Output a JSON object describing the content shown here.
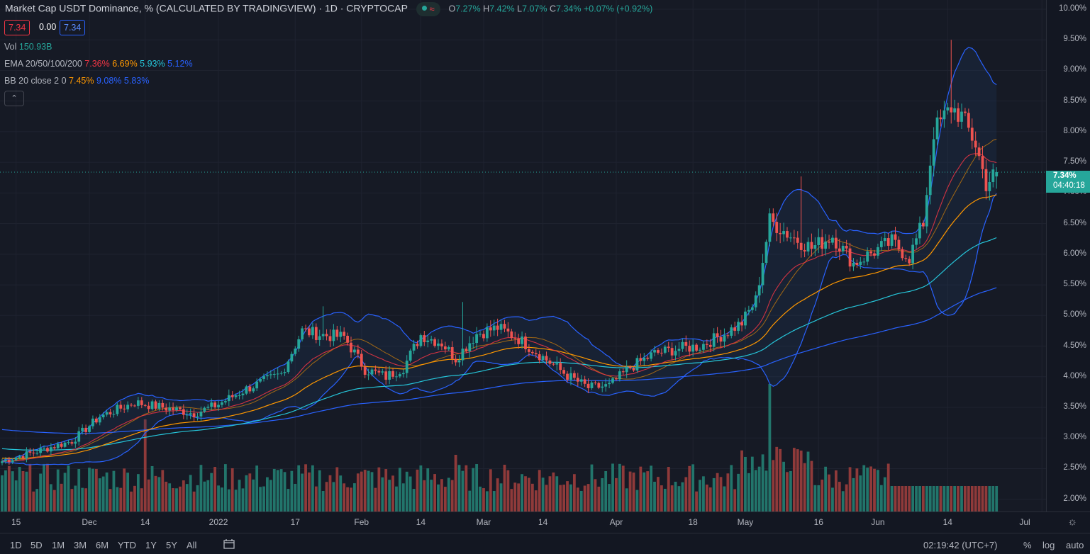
{
  "header": {
    "title": "Market Cap USDT Dominance, % (CALCULATED BY TRADINGVIEW) · 1D · CRYPTOCAP",
    "ohlc": {
      "o_label": "O",
      "o_value": "7.27%",
      "h_label": "H",
      "h_value": "7.42%",
      "l_label": "L",
      "l_value": "7.07%",
      "c_label": "C",
      "c_value": "7.34%",
      "change": "+0.07% (+0.92%)"
    },
    "status_icons": [
      "status-dot-icon",
      "wave-icon"
    ],
    "boxes": {
      "bid": "7.34",
      "spread": "0.00",
      "ask": "7.34"
    }
  },
  "indicators": {
    "vol": {
      "label": "Vol",
      "value": "150.93B"
    },
    "ema": {
      "label": "EMA 20/50/100/200",
      "v20": "7.36%",
      "v50": "6.69%",
      "v100": "5.93%",
      "v200": "5.12%"
    },
    "bb": {
      "label": "BB 20 close 2 0",
      "basis": "7.45%",
      "upper": "9.08%",
      "lower": "5.83%"
    },
    "collapse_icon": "chevron-up-icon"
  },
  "last_price": {
    "value": "7.34%",
    "countdown": "04:40:18"
  },
  "colors": {
    "up": "#26a69a",
    "down": "#ef5350",
    "ema20": "#f23645",
    "ema50": "#ff9800",
    "ema100": "#26c6da",
    "ema200": "#2962ff",
    "bb": "#2962ff",
    "bb_basis": "#ff9800",
    "bb_fill": "#1f3a5f",
    "vol_up": "#22756b",
    "vol_down": "#8f3a3a"
  },
  "bottom_bar": {
    "ranges": [
      "1D",
      "5D",
      "1M",
      "3M",
      "6M",
      "YTD",
      "1Y",
      "5Y",
      "All"
    ],
    "goto_icon": "calendar-goto-icon",
    "clock": "02:19:42 (UTC+7)",
    "percent": "%",
    "log": "log",
    "auto": "auto"
  },
  "settings_icon": "gear-icon",
  "chart_data": {
    "type": "candlestick",
    "title": "Market Cap USDT Dominance, %",
    "ylabel": "%",
    "y_ticks": [
      "2.00%",
      "2.50%",
      "3.00%",
      "3.50%",
      "4.00%",
      "4.50%",
      "5.00%",
      "5.50%",
      "6.00%",
      "6.50%",
      "7.00%",
      "7.50%",
      "8.00%",
      "8.50%",
      "9.00%",
      "9.50%",
      "10.00%"
    ],
    "ylim": [
      1.8,
      10.15
    ],
    "x_ticks": [
      "15",
      "Dec",
      "14",
      "2022",
      "17",
      "Feb",
      "14",
      "Mar",
      "14",
      "Apr",
      "18",
      "May",
      "16",
      "Jun",
      "14",
      "Jul"
    ],
    "close_anchors": [
      [
        0,
        2.62
      ],
      [
        8,
        2.75
      ],
      [
        14,
        2.85
      ],
      [
        20,
        2.95
      ],
      [
        28,
        3.35
      ],
      [
        38,
        3.58
      ],
      [
        48,
        3.48
      ],
      [
        55,
        3.4
      ],
      [
        62,
        3.55
      ],
      [
        70,
        3.8
      ],
      [
        80,
        4.05
      ],
      [
        86,
        4.75
      ],
      [
        92,
        4.68
      ],
      [
        98,
        4.65
      ],
      [
        104,
        4.12
      ],
      [
        110,
        4.0
      ],
      [
        115,
        4.15
      ],
      [
        120,
        4.68
      ],
      [
        126,
        4.55
      ],
      [
        130,
        4.3
      ],
      [
        136,
        4.7
      ],
      [
        142,
        4.8
      ],
      [
        148,
        4.62
      ],
      [
        155,
        4.32
      ],
      [
        162,
        4.02
      ],
      [
        168,
        3.82
      ],
      [
        174,
        3.85
      ],
      [
        180,
        4.15
      ],
      [
        187,
        4.38
      ],
      [
        194,
        4.46
      ],
      [
        200,
        4.5
      ],
      [
        207,
        4.7
      ],
      [
        212,
        4.88
      ],
      [
        216,
        5.25
      ],
      [
        220,
        6.55
      ],
      [
        226,
        6.3
      ],
      [
        232,
        6.1
      ],
      [
        238,
        6.3
      ],
      [
        244,
        5.85
      ],
      [
        250,
        6.05
      ],
      [
        255,
        6.2
      ],
      [
        260,
        5.95
      ],
      [
        264,
        6.52
      ],
      [
        267,
        8.0
      ],
      [
        272,
        8.4
      ],
      [
        275,
        8.25
      ],
      [
        279,
        7.8
      ],
      [
        282,
        7.15
      ],
      [
        285,
        7.34
      ]
    ],
    "highlights": {
      "peak_high": "9.50%",
      "vol_spike_day": "May ~9"
    },
    "series": [
      {
        "name": "EMA 20",
        "last": "7.36%"
      },
      {
        "name": "EMA 50",
        "last": "6.69%"
      },
      {
        "name": "EMA 100",
        "last": "5.93%"
      },
      {
        "name": "EMA 200",
        "last": "5.12%"
      },
      {
        "name": "BB upper",
        "last": "9.08%"
      },
      {
        "name": "BB basis",
        "last": "7.45%"
      },
      {
        "name": "BB lower",
        "last": "5.83%"
      }
    ],
    "volume_last": "150.93B",
    "grid": true,
    "legend": "top-left"
  }
}
